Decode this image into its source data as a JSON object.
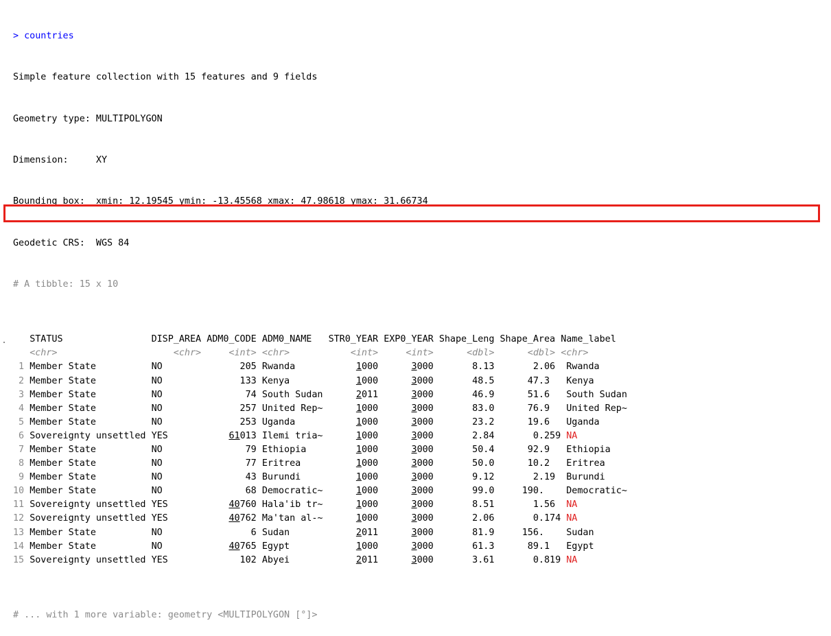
{
  "console": {
    "prompt_symbol": ">",
    "command": "countries",
    "header_lines": [
      "Simple feature collection with 15 features and 9 fields",
      "Geometry type: MULTIPOLYGON",
      "Dimension:     XY",
      "Bounding box:  xmin: 12.19545 ymin: -13.45568 xmax: 47.98618 ymax: 31.66734",
      "Geodetic CRS:  WGS 84"
    ],
    "tibble_comment": "# A tibble: 15 x 10",
    "footer_comment": "# ... with 1 more variable: geometry <MULTIPOLYGON [°]>"
  },
  "table": {
    "columns": [
      "STATUS",
      "DISP_AREA",
      "ADM0_CODE",
      "ADM0_NAME",
      "STR0_YEAR",
      "EXP0_YEAR",
      "Shape_Leng",
      "Shape_Area",
      "Name_label"
    ],
    "types": [
      "<chr>",
      "<chr>",
      "<int>",
      "<chr>",
      "<int>",
      "<int>",
      "<dbl>",
      "<dbl>",
      "<chr>"
    ],
    "rows": [
      {
        "n": "1",
        "status": "Member State",
        "disp": "NO",
        "code": "205",
        "name": "Rwanda",
        "str": "1000",
        "exp": "3000",
        "leng": "8.13",
        "area": "2.06",
        "label": "Rwanda"
      },
      {
        "n": "2",
        "status": "Member State",
        "disp": "NO",
        "code": "133",
        "name": "Kenya",
        "str": "1000",
        "exp": "3000",
        "leng": "48.5",
        "area": "47.3",
        "label": "Kenya"
      },
      {
        "n": "3",
        "status": "Member State",
        "disp": "NO",
        "code": "74",
        "name": "South Sudan",
        "str": "2011",
        "exp": "3000",
        "leng": "46.9",
        "area": "51.6",
        "label": "South Sudan"
      },
      {
        "n": "4",
        "status": "Member State",
        "disp": "NO",
        "code": "257",
        "name": "United Rep~",
        "str": "1000",
        "exp": "3000",
        "leng": "83.0",
        "area": "76.9",
        "label": "United Rep~"
      },
      {
        "n": "5",
        "status": "Member State",
        "disp": "NO",
        "code": "253",
        "name": "Uganda",
        "str": "1000",
        "exp": "3000",
        "leng": "23.2",
        "area": "19.6",
        "label": "Uganda"
      },
      {
        "n": "6",
        "status": "Sovereignty unsettled",
        "disp": "YES",
        "code": "61013",
        "name": "Ilemi tria~",
        "str": "1000",
        "exp": "3000",
        "leng": "2.84",
        "area": "0.259",
        "label": "NA"
      },
      {
        "n": "7",
        "status": "Member State",
        "disp": "NO",
        "code": "79",
        "name": "Ethiopia",
        "str": "1000",
        "exp": "3000",
        "leng": "50.4",
        "area": "92.9",
        "label": "Ethiopia"
      },
      {
        "n": "8",
        "status": "Member State",
        "disp": "NO",
        "code": "77",
        "name": "Eritrea",
        "str": "1000",
        "exp": "3000",
        "leng": "50.0",
        "area": "10.2",
        "label": "Eritrea"
      },
      {
        "n": "9",
        "status": "Member State",
        "disp": "NO",
        "code": "43",
        "name": "Burundi",
        "str": "1000",
        "exp": "3000",
        "leng": "9.12",
        "area": "2.19",
        "label": "Burundi"
      },
      {
        "n": "10",
        "status": "Member State",
        "disp": "NO",
        "code": "68",
        "name": "Democratic~",
        "str": "1000",
        "exp": "3000",
        "leng": "99.0",
        "area": "190.",
        "label": "Democratic~"
      },
      {
        "n": "11",
        "status": "Sovereignty unsettled",
        "disp": "YES",
        "code": "40760",
        "name": "Hala'ib tr~",
        "str": "1000",
        "exp": "3000",
        "leng": "8.51",
        "area": "1.56",
        "label": "NA"
      },
      {
        "n": "12",
        "status": "Sovereignty unsettled",
        "disp": "YES",
        "code": "40762",
        "name": "Ma'tan al-~",
        "str": "1000",
        "exp": "3000",
        "leng": "2.06",
        "area": "0.174",
        "label": "NA"
      },
      {
        "n": "13",
        "status": "Member State",
        "disp": "NO",
        "code": "6",
        "name": "Sudan",
        "str": "2011",
        "exp": "3000",
        "leng": "81.9",
        "area": "156.",
        "label": "Sudan"
      },
      {
        "n": "14",
        "status": "Member State",
        "disp": "NO",
        "code": "40765",
        "name": "Egypt",
        "str": "1000",
        "exp": "3000",
        "leng": "61.3",
        "area": "89.1",
        "label": "Egypt"
      },
      {
        "n": "15",
        "status": "Sovereignty unsettled",
        "disp": "YES",
        "code": "102",
        "name": "Abyei",
        "str": "2011",
        "exp": "3000",
        "leng": "3.61",
        "area": "0.819",
        "label": "NA"
      }
    ]
  },
  "highlighted_row": "7",
  "colors": {
    "prompt": "#0000ff",
    "comment": "#8a8a8a",
    "na": "#e02020",
    "highlight_box": "#e8201a"
  }
}
